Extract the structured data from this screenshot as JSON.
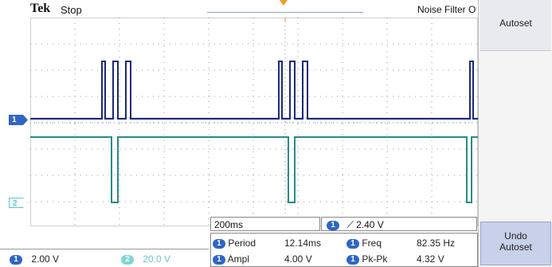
{
  "topbar": {
    "brand": "Tek",
    "state": "Stop",
    "noise_filter": "Noise Filter Off"
  },
  "channels": {
    "ch1_marker": "1",
    "ch2_marker": "2"
  },
  "sidebar": {
    "autoset": "Autoset",
    "undo_line1": "Undo",
    "undo_line2": "Autoset"
  },
  "status": {
    "ch1_badge": "1",
    "ch1_scale": "2.00 V",
    "ch2_badge": "2",
    "ch2_scale": "20.0 V",
    "timebase": "200ms",
    "trigger_badge": "1",
    "trigger_level": "2.40 V"
  },
  "measurements": [
    {
      "badge": "1",
      "label": "Period",
      "value": "12.14ms"
    },
    {
      "badge": "1",
      "label": "Freq",
      "value": "82.35 Hz"
    },
    {
      "badge": "1",
      "label": "Ampl",
      "value": "4.00 V"
    },
    {
      "badge": "1",
      "label": "Pk-Pk",
      "value": "4.32 V"
    }
  ],
  "colors": {
    "ch1": "#1a2a7a",
    "ch2": "#2a8a8a",
    "accent": "#2f66c4",
    "trigger": "#f0a020"
  }
}
